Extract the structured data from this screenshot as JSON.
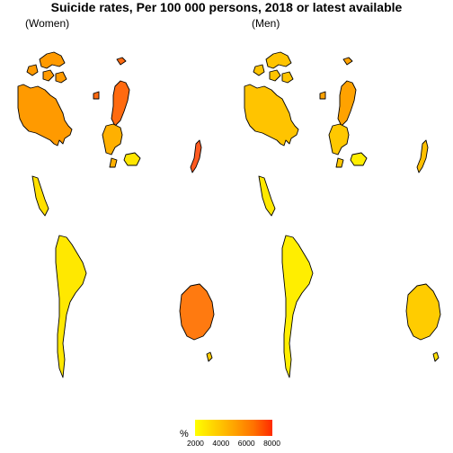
{
  "title": "Suicide rates, Per 100 000 persons, 2018 or latest available",
  "panels": [
    {
      "label": "(Women)"
    },
    {
      "label": "(Men)"
    }
  ],
  "legend": {
    "title": "%",
    "ticks": [
      "2000",
      "4000",
      "6000",
      "8000"
    ],
    "colors": [
      "#ffff00",
      "#ffd200",
      "#ffa500",
      "#ff7400",
      "#ff2a00"
    ]
  },
  "map_data": {
    "type": "choropleth-map",
    "women": {
      "north_america": "#ff9a00",
      "nordic": "#ff6a10",
      "western_europe": "#ffb000",
      "eastern_europe": "#ffe600",
      "japan_korea": "#ff5a20",
      "mexico": "#ffe000",
      "south_america": "#ffe800",
      "australia": "#ff7a10",
      "new_zealand": "#ffcc00"
    },
    "men": {
      "north_america": "#ffc400",
      "nordic": "#ffa200",
      "western_europe": "#ffc800",
      "eastern_europe": "#ffee00",
      "japan_korea": "#ffc000",
      "mexico": "#ffe800",
      "south_america": "#ffee00",
      "australia": "#ffcc00",
      "new_zealand": "#ffe000"
    }
  }
}
